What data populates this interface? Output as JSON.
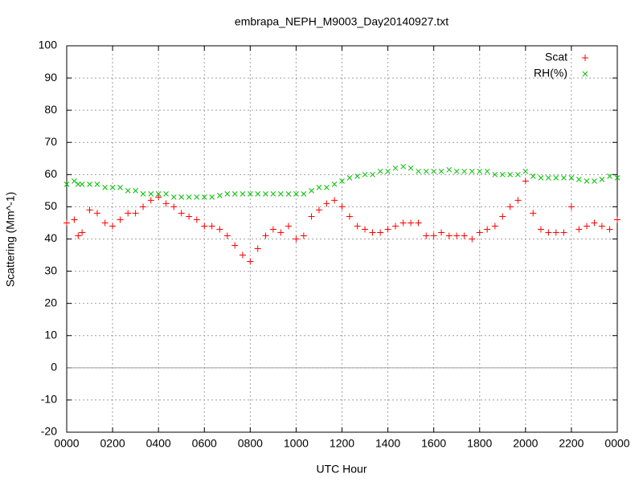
{
  "chart_data": {
    "type": "scatter",
    "title": "embrapa_NEPH_M9003_Day20140927.txt",
    "x_label": "UTC Hour",
    "y_label": "Scattering (Mm^-1)",
    "x": [
      0,
      0.33,
      0.5,
      0.67,
      1,
      1.33,
      1.67,
      2,
      2.33,
      2.67,
      3,
      3.33,
      3.67,
      4,
      4.33,
      4.67,
      5,
      5.33,
      5.67,
      6,
      6.33,
      6.67,
      7,
      7.33,
      7.67,
      8,
      8.33,
      8.67,
      9,
      9.33,
      9.67,
      10,
      10.33,
      10.67,
      11,
      11.33,
      11.67,
      12,
      12.33,
      12.67,
      13,
      13.33,
      13.67,
      14,
      14.33,
      14.67,
      15,
      15.33,
      15.67,
      16,
      16.33,
      16.67,
      17,
      17.33,
      17.67,
      18,
      18.33,
      18.67,
      19,
      19.33,
      19.67,
      20,
      20.33,
      20.67,
      21,
      21.33,
      21.67,
      22,
      22.33,
      22.67,
      23,
      23.33,
      23.67,
      24
    ],
    "series": [
      {
        "name": "Scat",
        "color": "#ff0000",
        "marker": "plus",
        "values": [
          45,
          46,
          41,
          42,
          49,
          48,
          45,
          44,
          46,
          48,
          48,
          50,
          52,
          53,
          51,
          50,
          48,
          47,
          46,
          44,
          44,
          43,
          41,
          38,
          35,
          33,
          37,
          41,
          43,
          42,
          44,
          40,
          41,
          47,
          49,
          51,
          52,
          50,
          47,
          44,
          43,
          42,
          42,
          43,
          44,
          45,
          45,
          45,
          41,
          41,
          42,
          41,
          41,
          41,
          40,
          42,
          43,
          44,
          47,
          50,
          52,
          58,
          48,
          43,
          42,
          42,
          42,
          50,
          43,
          44,
          45,
          44,
          43,
          46
        ]
      },
      {
        "name": "RH(%)",
        "color": "#00c000",
        "marker": "cross",
        "values": [
          57,
          58,
          57,
          57,
          57,
          57,
          56,
          56,
          56,
          55,
          55,
          54,
          54,
          54,
          54,
          53,
          53,
          53,
          53,
          53,
          53,
          53.5,
          54,
          54,
          54,
          54,
          54,
          54,
          54,
          54,
          54,
          54,
          54,
          55,
          56,
          56,
          57,
          58,
          59,
          59.5,
          60,
          60,
          61,
          61,
          62,
          62.5,
          62,
          61,
          61,
          61,
          61,
          61.5,
          61,
          61,
          61,
          61,
          61,
          60,
          60,
          60,
          60,
          61,
          59.5,
          59,
          59,
          59,
          59,
          59,
          58.5,
          58,
          58,
          58.5,
          59.5,
          59
        ]
      }
    ],
    "xlim": [
      0,
      24
    ],
    "xticks": [
      {
        "value": 0,
        "label": "0000"
      },
      {
        "value": 2,
        "label": "0200"
      },
      {
        "value": 4,
        "label": "0400"
      },
      {
        "value": 6,
        "label": "0600"
      },
      {
        "value": 8,
        "label": "0800"
      },
      {
        "value": 10,
        "label": "1000"
      },
      {
        "value": 12,
        "label": "1200"
      },
      {
        "value": 14,
        "label": "1400"
      },
      {
        "value": 16,
        "label": "1600"
      },
      {
        "value": 18,
        "label": "1800"
      },
      {
        "value": 20,
        "label": "2000"
      },
      {
        "value": 22,
        "label": "2200"
      },
      {
        "value": 24,
        "label": "0000"
      }
    ],
    "ylim": [
      -20,
      100
    ],
    "yticks": [
      -20,
      -10,
      0,
      10,
      20,
      30,
      40,
      50,
      60,
      70,
      80,
      90,
      100
    ],
    "grid": true,
    "zero_axis": true,
    "legend": "top right"
  }
}
